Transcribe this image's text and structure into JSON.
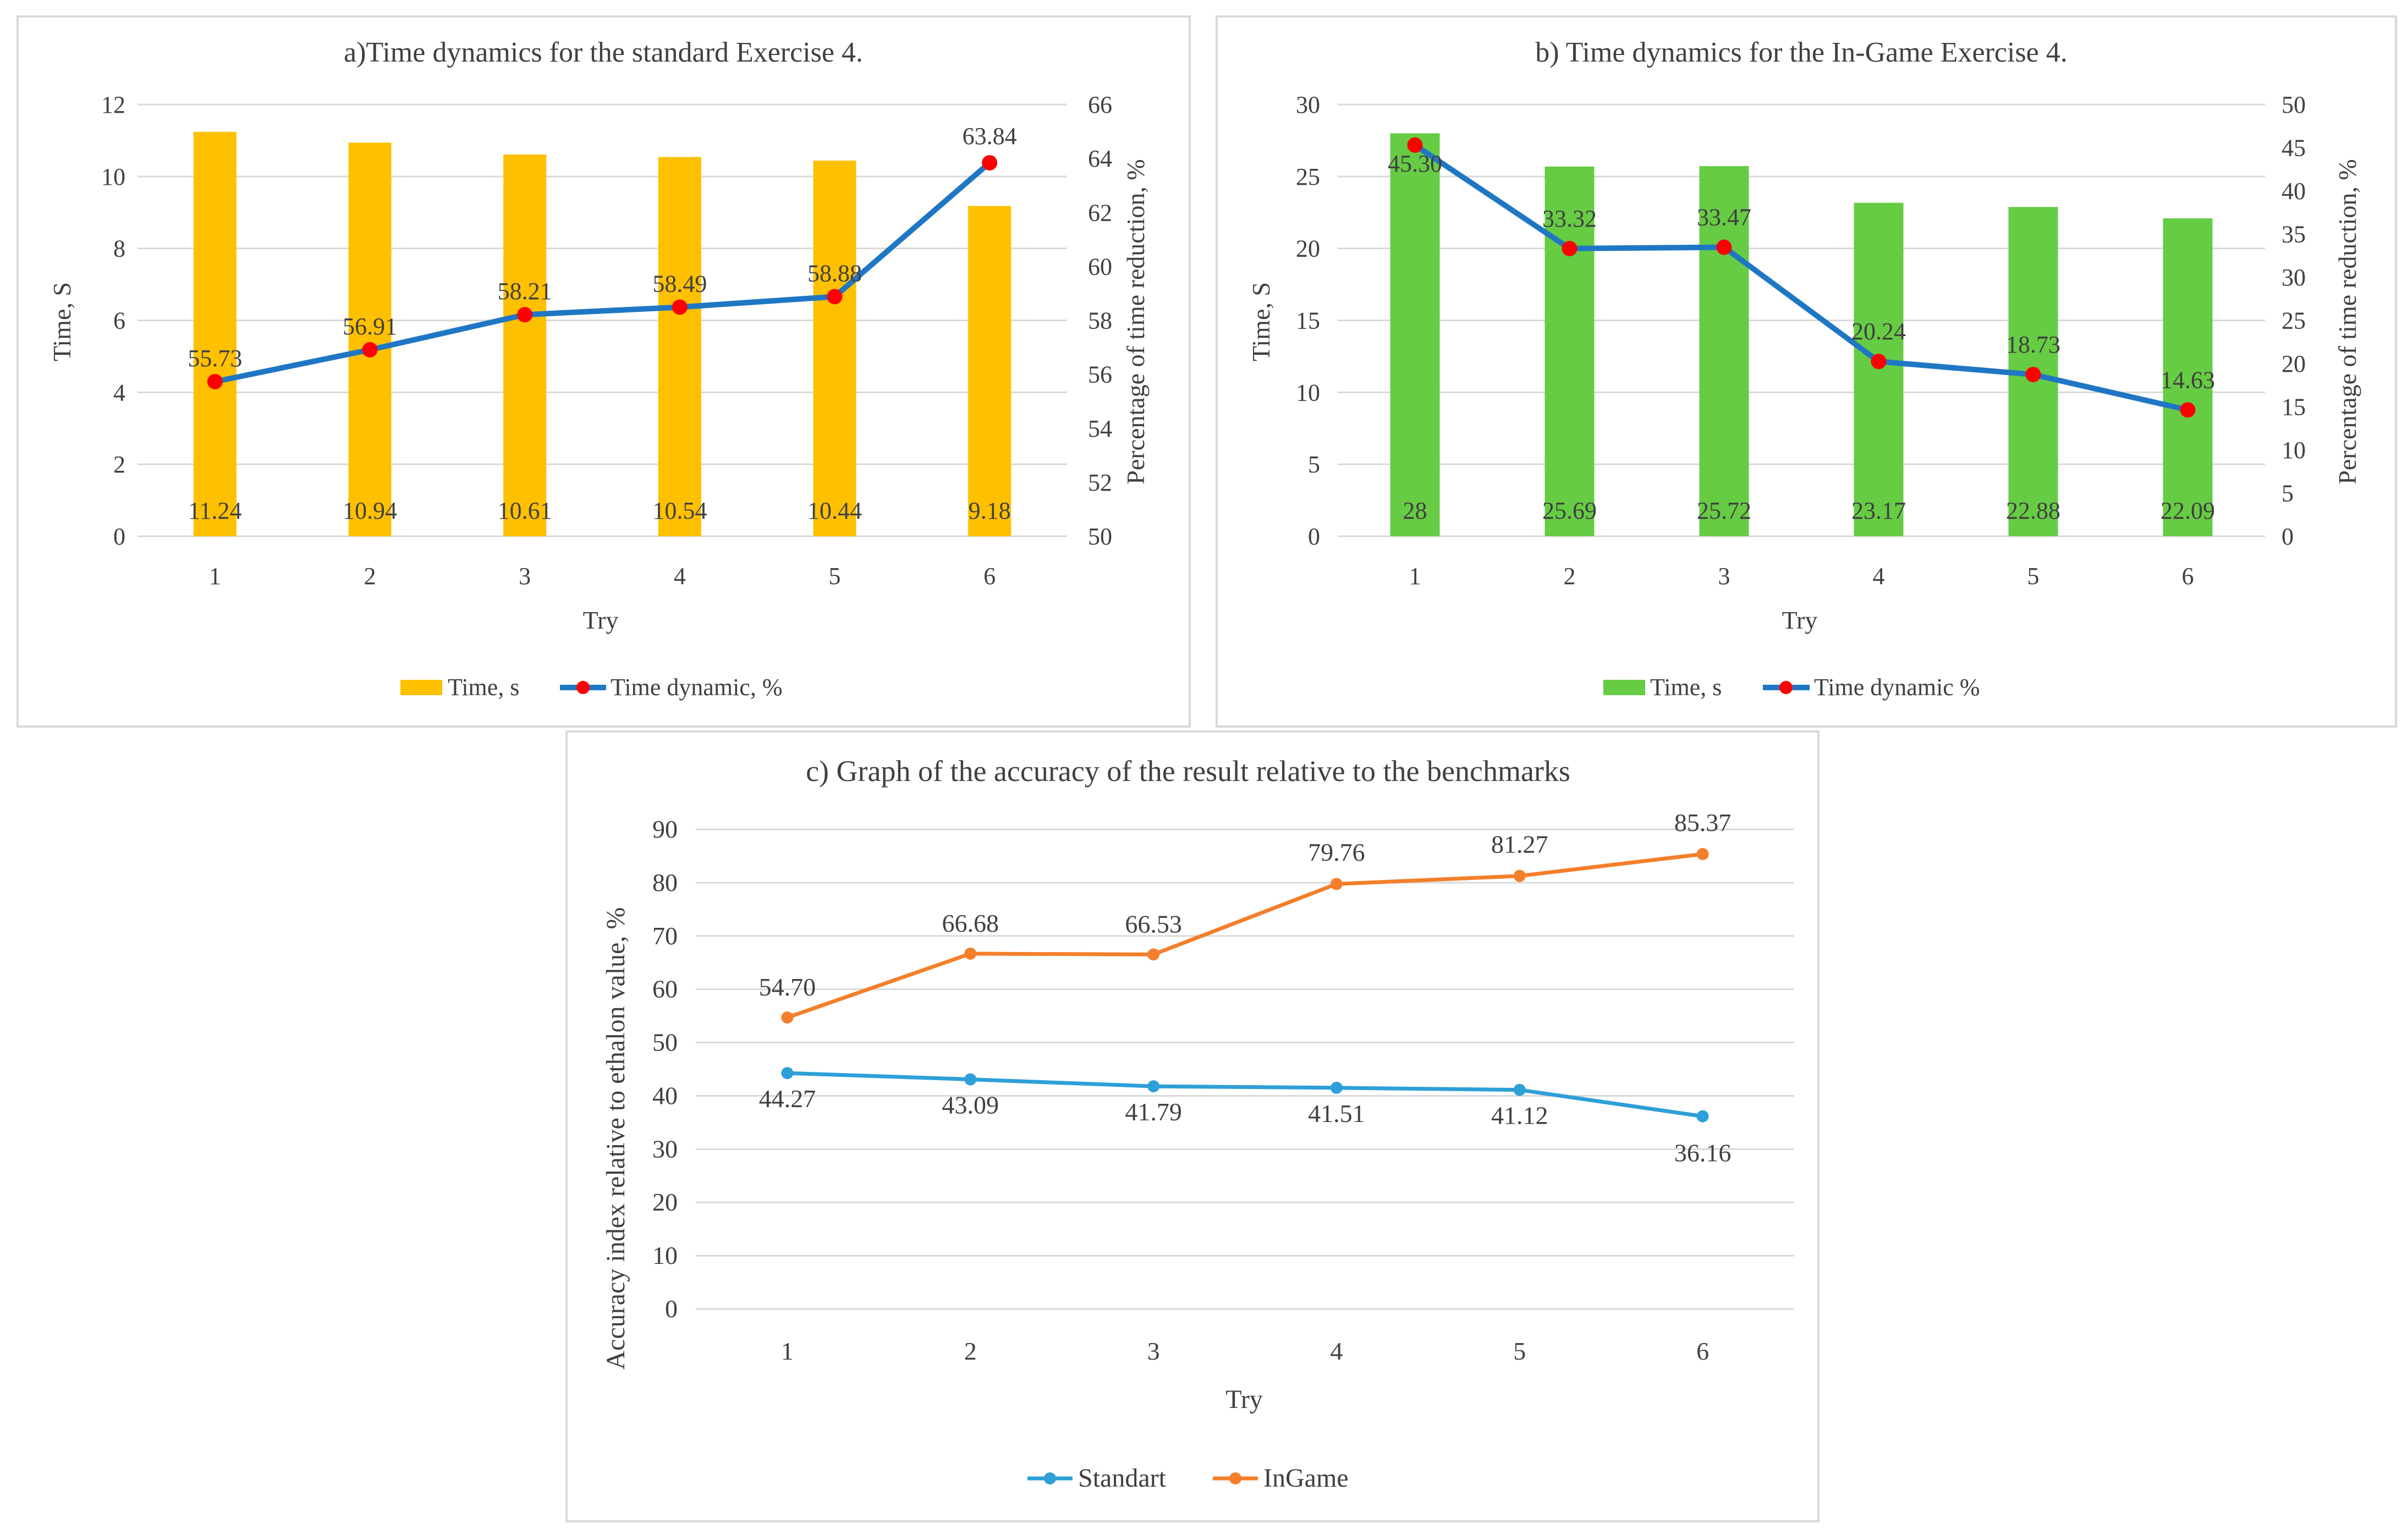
{
  "chart_data": [
    {
      "type": "bar",
      "title": "a)Time dynamics for the standard Exercise 4.",
      "xlabel": "Try",
      "ylabel": "Time, S",
      "y2label": "Percentage of time reduction, %",
      "categories": [
        "1",
        "2",
        "3",
        "4",
        "5",
        "6"
      ],
      "ylim": [
        0,
        12
      ],
      "y_ticks": [
        "0",
        "2",
        "4",
        "6",
        "8",
        "10",
        "12"
      ],
      "y2lim": [
        50,
        66
      ],
      "y2_ticks": [
        "50",
        "52",
        "54",
        "56",
        "58",
        "60",
        "62",
        "64",
        "66"
      ],
      "grid": true,
      "legend_position": "bottom",
      "series": [
        {
          "name": "Time, s",
          "kind": "bar",
          "axis": "left",
          "color": "#ffc000",
          "values": [
            11.24,
            10.94,
            10.61,
            10.54,
            10.44,
            9.18
          ],
          "labels": [
            "11.24",
            "10.94",
            "10.61",
            "10.54",
            "10.44",
            "9.18"
          ]
        },
        {
          "name": "Time dynamic, %",
          "kind": "line",
          "axis": "right",
          "color": "#1f77c4",
          "marker_color": "#ff0000",
          "values": [
            55.73,
            56.91,
            58.21,
            58.49,
            58.88,
            63.84
          ],
          "labels": [
            "55.73",
            "56.91",
            "58.21",
            "58.49",
            "58.88",
            "63.84"
          ]
        }
      ]
    },
    {
      "type": "bar",
      "title": "b) Time dynamics for the In-Game Exercise 4.",
      "xlabel": "Try",
      "ylabel": "Time, S",
      "y2label": "Percentage of time reduction, %",
      "categories": [
        "1",
        "2",
        "3",
        "4",
        "5",
        "6"
      ],
      "ylim": [
        0,
        30
      ],
      "y_ticks": [
        "0",
        "5",
        "10",
        "15",
        "20",
        "25",
        "30"
      ],
      "y2lim": [
        0,
        50
      ],
      "y2_ticks": [
        "0",
        "5",
        "10",
        "15",
        "20",
        "25",
        "30",
        "35",
        "40",
        "45",
        "50"
      ],
      "grid": true,
      "legend_position": "bottom",
      "series": [
        {
          "name": "Time, s",
          "kind": "bar",
          "axis": "left",
          "color": "#66cc44",
          "values": [
            28,
            25.69,
            25.72,
            23.17,
            22.88,
            22.09
          ],
          "labels": [
            "28",
            "25.69",
            "25.72",
            "23.17",
            "22.88",
            "22.09"
          ]
        },
        {
          "name": "Time dynamic %",
          "kind": "line",
          "axis": "right",
          "color": "#1f77c4",
          "marker_color": "#ff0000",
          "values": [
            45.3,
            33.32,
            33.47,
            20.24,
            18.73,
            14.63
          ],
          "labels": [
            "45.30",
            "33.32",
            "33.47",
            "20.24",
            "18.73",
            "14.63"
          ]
        }
      ]
    },
    {
      "type": "line",
      "title": "c) Graph of the accuracy of the result relative to the benchmarks",
      "xlabel": "Try",
      "ylabel": "Accuracy index relative to ethalon value, %",
      "categories": [
        "1",
        "2",
        "3",
        "4",
        "5",
        "6"
      ],
      "ylim": [
        0,
        90
      ],
      "y_ticks": [
        "0",
        "10",
        "20",
        "30",
        "40",
        "50",
        "60",
        "70",
        "80",
        "90"
      ],
      "grid": true,
      "legend_position": "bottom",
      "series": [
        {
          "name": "Standart",
          "kind": "line",
          "color": "#2e9fd8",
          "values": [
            44.27,
            43.09,
            41.79,
            41.51,
            41.12,
            36.16
          ],
          "labels": [
            "44.27",
            "43.09",
            "41.79",
            "41.51",
            "41.12",
            "36.16"
          ]
        },
        {
          "name": "InGame",
          "kind": "line",
          "color": "#f47f2b",
          "values": [
            54.7,
            66.68,
            66.53,
            79.76,
            81.27,
            85.37
          ],
          "labels": [
            "54.70",
            "66.68",
            "66.53",
            "79.76",
            "81.27",
            "85.37"
          ]
        }
      ]
    }
  ]
}
